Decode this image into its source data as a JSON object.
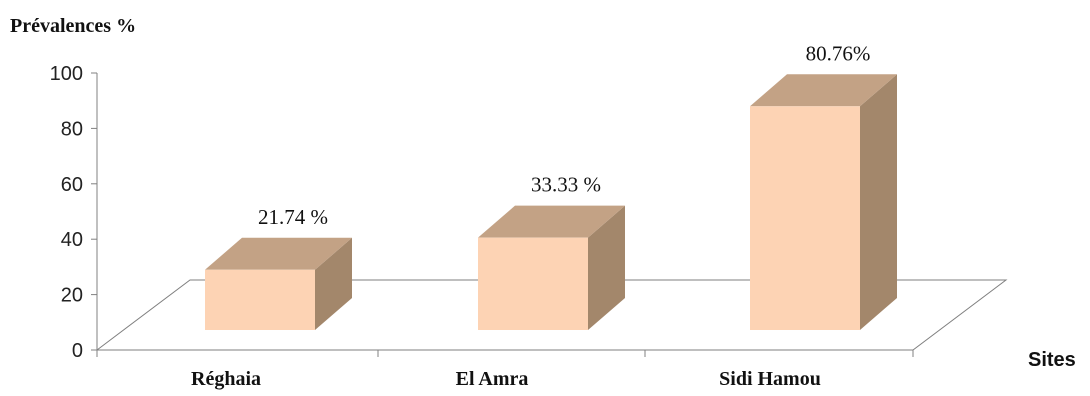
{
  "chart_data": {
    "type": "bar",
    "ylabel": "Prévalences  %",
    "xlabel": "Sites",
    "categories": [
      "Réghaia",
      "El Amra",
      "Sidi Hamou"
    ],
    "values": [
      21.74,
      33.33,
      80.76
    ],
    "data_labels": [
      "21.74 %",
      "33.33 %",
      "80.76%"
    ],
    "ylim": [
      0,
      100
    ],
    "yticks": [
      "0",
      "20",
      "40",
      "60",
      "80",
      "100"
    ],
    "grid": false,
    "style": "3d-column",
    "colors": {
      "front": "#FDD3B4",
      "side": "#A3876B",
      "top": "#C3A285",
      "floor_line": "#7f7f7f",
      "axis": "#808080"
    }
  }
}
